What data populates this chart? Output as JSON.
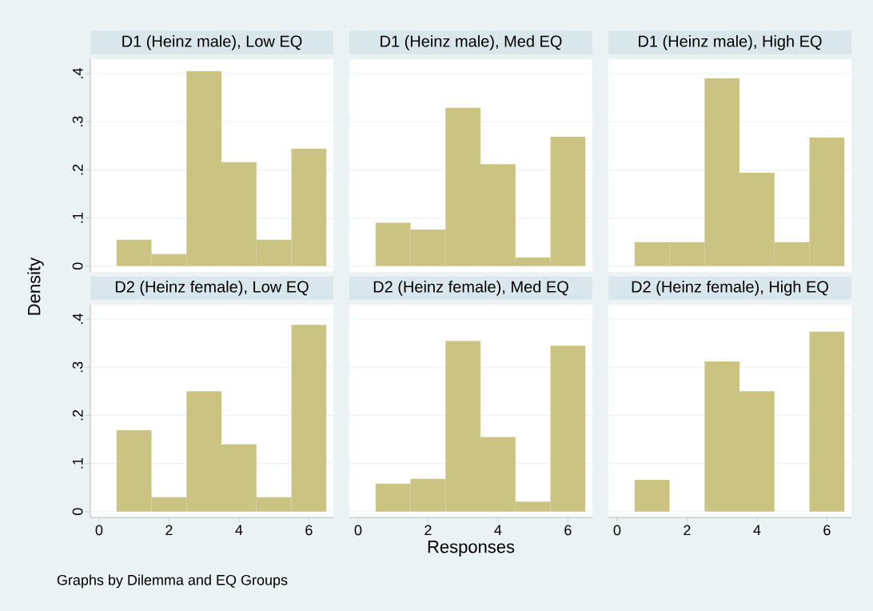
{
  "chart_data": [
    {
      "type": "histogram",
      "title": "D1 (Heinz male), Low EQ",
      "ylabel": "Density",
      "bins": [
        0.5,
        1.5,
        2.5,
        3.5,
        4.5,
        5.5,
        6.5
      ],
      "values": [
        0.055,
        0.025,
        0.405,
        0.216,
        0.055,
        0.244
      ],
      "color": "#cbc382",
      "xlim": [
        -0.25,
        6.7
      ],
      "ylim": [
        -0.012,
        0.43
      ],
      "yticks": [
        0,
        {
          "value": 0.1,
          "label": ".1"
        },
        {
          "value": 0.2,
          "label": ".2"
        },
        {
          "value": 0.3,
          "label": ".3"
        },
        {
          "value": 0.4,
          "label": ".4"
        }
      ],
      "grid": "y",
      "tick_labels": "y"
    },
    {
      "type": "histogram",
      "title": "D1 (Heinz male), Med EQ",
      "bins": [
        0.5,
        1.5,
        2.5,
        3.5,
        4.5,
        5.5,
        6.5
      ],
      "values": [
        0.09,
        0.076,
        0.329,
        0.212,
        0.018,
        0.269
      ],
      "color": "#cbc382",
      "xlim": [
        -0.25,
        6.7
      ],
      "ylim": [
        -0.012,
        0.43
      ],
      "yticks": [
        {
          "value": 0,
          "label": null
        },
        {
          "value": 0.1,
          "label": null
        },
        {
          "value": 0.2,
          "label": null
        },
        {
          "value": 0.3,
          "label": null
        },
        {
          "value": 0.4,
          "label": null
        }
      ],
      "grid": "y",
      "tick_labels": false
    },
    {
      "type": "histogram",
      "title": "D1 (Heinz male), High EQ",
      "bins": [
        0.5,
        1.5,
        2.5,
        3.5,
        4.5,
        5.5,
        6.5
      ],
      "values": [
        0.05,
        0.05,
        0.39,
        0.194,
        0.05,
        0.267
      ],
      "color": "#cbc382",
      "xlim": [
        -0.25,
        6.7
      ],
      "ylim": [
        -0.012,
        0.43
      ],
      "yticks": [
        {
          "value": 0,
          "label": null
        },
        {
          "value": 0.1,
          "label": null
        },
        {
          "value": 0.2,
          "label": null
        },
        {
          "value": 0.3,
          "label": null
        },
        {
          "value": 0.4,
          "label": null
        }
      ],
      "grid": "y",
      "tick_labels": false
    },
    {
      "type": "histogram",
      "title": "D2 (Heinz female), Low EQ",
      "annotations": [
        "Graphs by Dilemma and EQ Groups"
      ],
      "bins": [
        0.5,
        1.5,
        2.5,
        3.5,
        4.5,
        5.5,
        6.5
      ],
      "values": [
        0.169,
        0.03,
        0.25,
        0.14,
        0.03,
        0.388
      ],
      "color": "#cbc382",
      "xlim": [
        -0.25,
        6.7
      ],
      "ylim": [
        -0.012,
        0.43
      ],
      "xticks": [
        0,
        2,
        4,
        6
      ],
      "yticks": [
        0,
        {
          "value": 0.1,
          "label": ".1"
        },
        {
          "value": 0.2,
          "label": ".2"
        },
        {
          "value": 0.3,
          "label": ".3"
        },
        {
          "value": 0.4,
          "label": ".4"
        }
      ],
      "grid": "y"
    },
    {
      "type": "histogram",
      "title": "D2 (Heinz female), Med EQ",
      "xlabel": "Responses",
      "bins": [
        0.5,
        1.5,
        2.5,
        3.5,
        4.5,
        5.5,
        6.5
      ],
      "values": [
        0.058,
        0.068,
        0.355,
        0.155,
        0.021,
        0.345
      ],
      "color": "#cbc382",
      "xlim": [
        -0.25,
        6.7
      ],
      "ylim": [
        -0.012,
        0.43
      ],
      "xticks": [
        0,
        2,
        4,
        6
      ],
      "yticks": [
        {
          "value": 0,
          "label": null
        },
        {
          "value": 0.1,
          "label": null
        },
        {
          "value": 0.2,
          "label": null
        },
        {
          "value": 0.3,
          "label": null
        },
        {
          "value": 0.4,
          "label": null
        }
      ],
      "grid": "y",
      "tick_labels": "x"
    },
    {
      "type": "histogram",
      "title": "D2 (Heinz female), High EQ",
      "bins": [
        0.5,
        1.5,
        2.5,
        3.5,
        4.5,
        5.5,
        6.5
      ],
      "values": [
        0.066,
        0,
        0.312,
        0.25,
        0,
        0.374
      ],
      "color": "#cbc382",
      "xlim": [
        -0.25,
        6.7
      ],
      "ylim": [
        -0.012,
        0.43
      ],
      "xticks": [
        0,
        2,
        4,
        6
      ],
      "yticks": [
        {
          "value": 0,
          "label": null
        },
        {
          "value": 0.1,
          "label": null
        },
        {
          "value": 0.2,
          "label": null
        },
        {
          "value": 0.3,
          "label": null
        },
        {
          "value": 0.4,
          "label": null
        }
      ],
      "grid": "y",
      "tick_labels": "x"
    }
  ]
}
